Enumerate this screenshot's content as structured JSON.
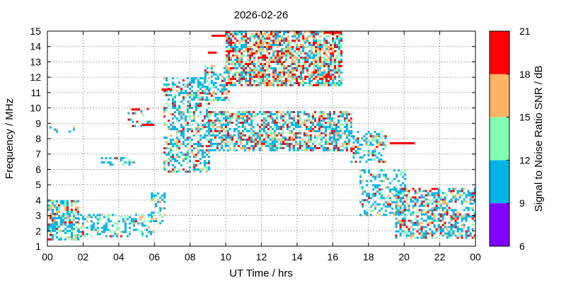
{
  "chart_data": {
    "type": "heatmap",
    "title": "2026-02-26",
    "xlabel": "UT Time / hrs",
    "ylabel": "Frequency / MHz",
    "colorbar_label": "Signal to Noise Ratio SNR / dB",
    "xlim": [
      0,
      24
    ],
    "ylim": [
      1,
      15
    ],
    "x_ticks": [
      "00",
      "02",
      "04",
      "06",
      "08",
      "10",
      "12",
      "14",
      "16",
      "18",
      "20",
      "22",
      "00"
    ],
    "y_ticks": [
      "1",
      "2",
      "3",
      "4",
      "5",
      "6",
      "7",
      "8",
      "9",
      "10",
      "11",
      "12",
      "13",
      "14",
      "15"
    ],
    "grid": true,
    "colorbar": {
      "ticks": [
        "6",
        "9",
        "12",
        "15",
        "18",
        "21"
      ],
      "bands": [
        {
          "from": 6,
          "to": 9,
          "color": "#8000ff"
        },
        {
          "from": 9,
          "to": 12,
          "color": "#00b4e6"
        },
        {
          "from": 12,
          "to": 15,
          "color": "#80ffb4"
        },
        {
          "from": 15,
          "to": 18,
          "color": "#ffb464"
        },
        {
          "from": 18,
          "to": 21,
          "color": "#ff0000"
        }
      ]
    },
    "clusters": [
      {
        "x": [
          0.0,
          1.7
        ],
        "y": [
          1.5,
          4.0
        ],
        "density": 0.55,
        "snr": [
          0.55,
          0.15,
          0.15,
          0.15
        ]
      },
      {
        "x": [
          1.7,
          5.9
        ],
        "y": [
          1.6,
          3.1
        ],
        "density": 0.35,
        "snr": [
          0.6,
          0.25,
          0.1,
          0.05
        ]
      },
      {
        "x": [
          5.8,
          6.6
        ],
        "y": [
          2.5,
          4.5
        ],
        "density": 0.35,
        "snr": [
          0.6,
          0.2,
          0.15,
          0.05
        ]
      },
      {
        "x": [
          6.5,
          9.0
        ],
        "y": [
          5.8,
          12.0
        ],
        "density": 0.45,
        "snr": [
          0.6,
          0.15,
          0.15,
          0.1
        ]
      },
      {
        "x": [
          8.8,
          10.2
        ],
        "y": [
          10.5,
          12.8
        ],
        "density": 0.45,
        "snr": [
          0.6,
          0.15,
          0.15,
          0.1
        ]
      },
      {
        "x": [
          10.0,
          16.5
        ],
        "y": [
          11.5,
          15.0
        ],
        "density": 0.7,
        "snr": [
          0.3,
          0.2,
          0.2,
          0.3
        ]
      },
      {
        "x": [
          9.0,
          17.0
        ],
        "y": [
          7.2,
          9.8
        ],
        "density": 0.55,
        "snr": [
          0.45,
          0.2,
          0.15,
          0.2
        ]
      },
      {
        "x": [
          17.0,
          19.0
        ],
        "y": [
          6.5,
          8.5
        ],
        "density": 0.45,
        "snr": [
          0.6,
          0.15,
          0.15,
          0.1
        ]
      },
      {
        "x": [
          17.5,
          20.0
        ],
        "y": [
          3.0,
          6.0
        ],
        "density": 0.35,
        "snr": [
          0.65,
          0.2,
          0.1,
          0.05
        ]
      },
      {
        "x": [
          19.5,
          24.0
        ],
        "y": [
          1.5,
          4.8
        ],
        "density": 0.5,
        "snr": [
          0.5,
          0.15,
          0.15,
          0.2
        ]
      },
      {
        "x": [
          3.0,
          4.8
        ],
        "y": [
          6.3,
          6.8
        ],
        "density": 0.25,
        "snr": [
          0.8,
          0.1,
          0.05,
          0.05
        ]
      },
      {
        "x": [
          0.0,
          1.5
        ],
        "y": [
          8.4,
          8.8
        ],
        "density": 0.2,
        "snr": [
          0.8,
          0.1,
          0.05,
          0.05
        ]
      },
      {
        "x": [
          4.5,
          6.0
        ],
        "y": [
          8.8,
          10.0
        ],
        "density": 0.15,
        "snr": [
          0.4,
          0.1,
          0.1,
          0.4
        ]
      }
    ],
    "lines": [
      {
        "x": [
          9.2,
          10.0
        ],
        "y": 14.7,
        "color": "#ff0000"
      },
      {
        "x": [
          15.5,
          16.5
        ],
        "y": 14.9,
        "color": "#ff0000"
      },
      {
        "x": [
          6.4,
          7.0
        ],
        "y": 11.2,
        "color": "#ff0000"
      },
      {
        "x": [
          5.3,
          6.0
        ],
        "y": 8.9,
        "color": "#ff0000"
      },
      {
        "x": [
          4.7,
          5.2
        ],
        "y": 9.9,
        "color": "#ff0000"
      },
      {
        "x": [
          19.2,
          20.6
        ],
        "y": 7.7,
        "color": "#ff0000"
      },
      {
        "x": [
          9.0,
          9.5
        ],
        "y": 13.6,
        "color": "#ff0000"
      }
    ]
  }
}
